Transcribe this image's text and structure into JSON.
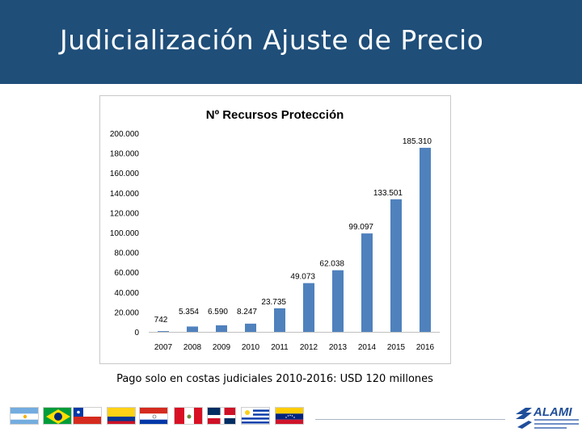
{
  "slide": {
    "title": "Judicialización Ajuste de Precio",
    "caption": "Pago solo en costas judiciales 2010-2016: USD 120 millones"
  },
  "chart_data": {
    "type": "bar",
    "title": "Nº Recursos Protección",
    "categories": [
      "2007",
      "2008",
      "2009",
      "2010",
      "2011",
      "2012",
      "2013",
      "2014",
      "2015",
      "2016"
    ],
    "values": [
      742,
      5354,
      6590,
      8247,
      23735,
      49073,
      62038,
      99097,
      133501,
      185310
    ],
    "data_labels": [
      "742",
      "5.354",
      "6.590",
      "8.247",
      "23.735",
      "49.073",
      "62.038",
      "99.097",
      "133.501",
      "185.310"
    ],
    "y_ticks": [
      0,
      20000,
      40000,
      60000,
      80000,
      100000,
      120000,
      140000,
      160000,
      180000,
      200000
    ],
    "y_tick_labels": [
      "0",
      "20.000",
      "40.000",
      "60.000",
      "80.000",
      "100.000",
      "120.000",
      "140.000",
      "160.000",
      "180.000",
      "200.000"
    ],
    "ylim": [
      0,
      200000
    ],
    "xlabel": "",
    "ylabel": "",
    "grid": false,
    "bar_color": "#4f81bd"
  },
  "footer": {
    "flags": [
      "argentina-flag",
      "brazil-flag",
      "chile-flag",
      "colombia-flag",
      "paraguay-flag",
      "peru-flag",
      "dominican-republic-flag",
      "uruguay-flag",
      "venezuela-flag"
    ],
    "logo": {
      "name": "ALAMI",
      "subtitle": "ASOCIACIÓN LATINOAMERICANA DE INDUSTRIAS FARMACÉUTICAS"
    }
  }
}
